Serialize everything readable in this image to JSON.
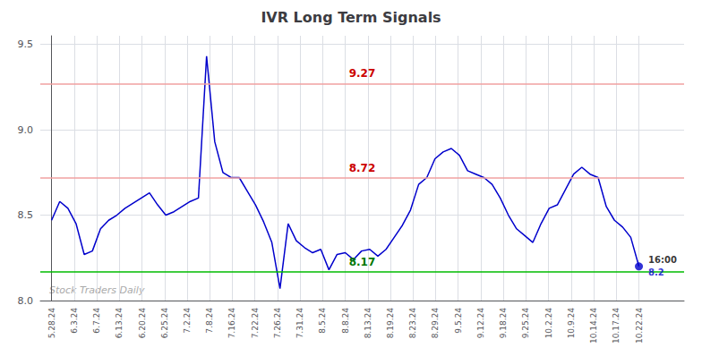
{
  "chart_data": {
    "type": "line",
    "title": "IVR Long Term Signals",
    "x": [
      0,
      0.361111,
      0.722222,
      1.083333,
      1.444444,
      1.805556,
      2.166667,
      2.527778,
      2.888889,
      3.25,
      3.611111,
      3.972222,
      4.333333,
      4.694444,
      5.055556,
      5.416667,
      5.777778,
      6.138889,
      6.5,
      6.861111,
      7.222222,
      7.583333,
      7.944444,
      8.305556,
      8.666667,
      9.027778,
      9.388889,
      9.75,
      10.111111,
      10.472222,
      10.833333,
      11.194444,
      11.555556,
      11.916667,
      12.277778,
      12.638889,
      13,
      13.361111,
      13.722222,
      14.083333,
      14.444444,
      14.805556,
      15.166667,
      15.527778,
      15.888889,
      16.25,
      16.611111,
      16.972222,
      17.333333,
      17.694444,
      18.055556,
      18.416667,
      18.777778,
      19.138889,
      19.5,
      19.861111,
      20.222222,
      20.583333,
      20.944444,
      21.305556,
      21.666667,
      22.027778,
      22.388889,
      22.75,
      23.111111,
      23.472222,
      23.833333,
      24.194444,
      24.555556,
      24.916667,
      25.277778,
      25.638889,
      26
    ],
    "values": [
      8.47,
      8.58,
      8.54,
      8.45,
      8.27,
      8.29,
      8.42,
      8.47,
      8.5,
      8.54,
      8.57,
      8.6,
      8.63,
      8.56,
      8.5,
      8.52,
      8.55,
      8.58,
      8.6,
      9.43,
      8.93,
      8.75,
      8.72,
      8.72,
      8.64,
      8.56,
      8.46,
      8.34,
      8.07,
      8.45,
      8.35,
      8.31,
      8.28,
      8.3,
      8.18,
      8.27,
      8.28,
      8.24,
      8.29,
      8.3,
      8.26,
      8.3,
      8.37,
      8.44,
      8.53,
      8.68,
      8.72,
      8.83,
      8.87,
      8.89,
      8.85,
      8.76,
      8.74,
      8.72,
      8.68,
      8.6,
      8.5,
      8.42,
      8.38,
      8.34,
      8.45,
      8.54,
      8.56,
      8.65,
      8.74,
      8.78,
      8.74,
      8.72,
      8.55,
      8.47,
      8.43,
      8.37,
      8.2
    ],
    "color": "#0000cc",
    "xlim": [
      -0.5,
      28
    ],
    "xticks": [
      {
        "value": 0,
        "label": "5.28.24"
      },
      {
        "value": 1,
        "label": "6.3.24"
      },
      {
        "value": 2,
        "label": "6.7.24"
      },
      {
        "value": 3,
        "label": "6.13.24"
      },
      {
        "value": 4,
        "label": "6.20.24"
      },
      {
        "value": 5,
        "label": "6.25.24"
      },
      {
        "value": 6,
        "label": "7.2.24"
      },
      {
        "value": 7,
        "label": "7.8.24"
      },
      {
        "value": 8,
        "label": "7.16.24"
      },
      {
        "value": 9,
        "label": "7.22.24"
      },
      {
        "value": 10,
        "label": "7.26.24"
      },
      {
        "value": 11,
        "label": "7.31.24"
      },
      {
        "value": 12,
        "label": "8.5.24"
      },
      {
        "value": 13,
        "label": "8.8.24"
      },
      {
        "value": 14,
        "label": "8.13.24"
      },
      {
        "value": 15,
        "label": "8.19.24"
      },
      {
        "value": 16,
        "label": "8.23.24"
      },
      {
        "value": 17,
        "label": "8.29.24"
      },
      {
        "value": 18,
        "label": "9.5.24"
      },
      {
        "value": 19,
        "label": "9.12.24"
      },
      {
        "value": 20,
        "label": "9.18.24"
      },
      {
        "value": 21,
        "label": "9.25.24"
      },
      {
        "value": 22,
        "label": "10.2.24"
      },
      {
        "value": 23,
        "label": "10.9.24"
      },
      {
        "value": 24,
        "label": "10.14.24"
      },
      {
        "value": 25,
        "label": "10.17.24"
      },
      {
        "value": 26,
        "label": "10.22.24"
      }
    ],
    "ylim": [
      8.0,
      9.55
    ],
    "yticks": [
      {
        "value": 8.0,
        "label": "8.0"
      },
      8.5,
      {
        "value": 9.0,
        "label": "9.0"
      },
      9.5
    ],
    "grid": true,
    "hlines": [
      {
        "value": 9.27,
        "label": "9.27",
        "color": "#f0a0a0",
        "label_color": "#cc0000"
      },
      {
        "value": 8.72,
        "label": "8.72",
        "color": "#f0a0a0",
        "label_color": "#cc0000"
      },
      {
        "value": 8.17,
        "label": "8.17",
        "color": "#00bb00",
        "label_color": "#007700"
      }
    ],
    "last_point": {
      "time_label": "16:00",
      "value_label": "8.2",
      "color": "#0000cc"
    },
    "watermark": "Stock Traders Daily"
  }
}
